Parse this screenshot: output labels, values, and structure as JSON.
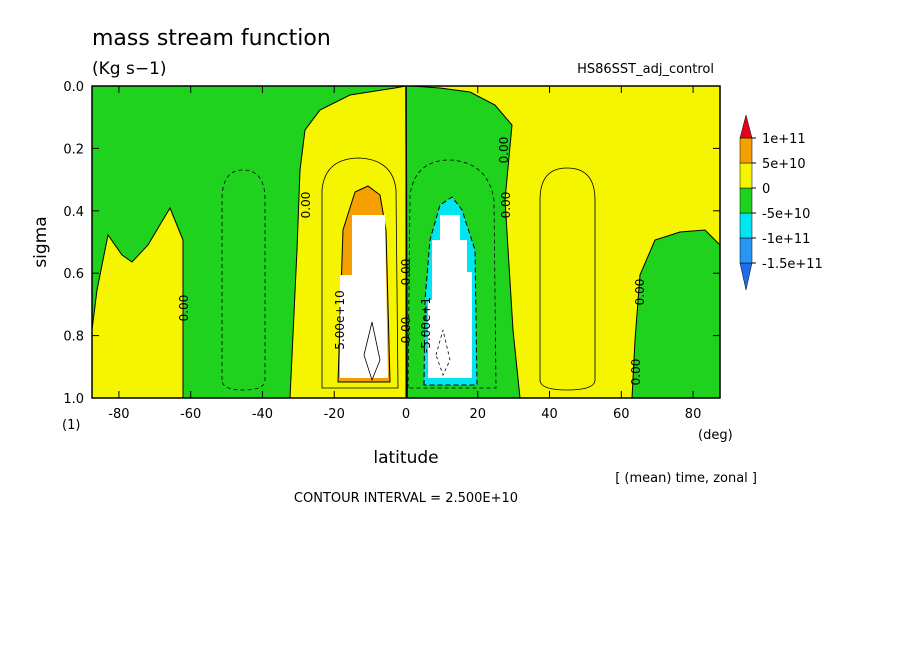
{
  "chart_data": {
    "type": "contour",
    "title": "mass stream function",
    "subtitle": "(Kg s−1)",
    "experiment": "HS86SST_adj_control",
    "xlabel": "latitude",
    "ylabel": "sigma",
    "y_unit": "(1)",
    "x_unit": "(deg)",
    "averaging": "[ (mean) time, zonal ]",
    "contour_interval": "CONTOUR INTERVAL = 2.500E+10",
    "xlim": [
      -87.5,
      87.5
    ],
    "ylim": [
      1.0,
      0.0
    ],
    "xticks": [
      -80,
      -60,
      -40,
      -20,
      0,
      20,
      40,
      60,
      80
    ],
    "yticks": [
      {
        "value": 0,
        "label": "0.0"
      },
      0.2,
      0.4,
      0.6,
      0.8,
      {
        "value": 1,
        "label": "1.0"
      }
    ],
    "colorbar": {
      "levels": [
        {
          "value": -150000000000,
          "label": "-1.5e+11"
        },
        {
          "value": -100000000000,
          "label": "-1e+11"
        },
        {
          "value": -50000000000,
          "label": "-5e+10"
        },
        0,
        {
          "value": 50000000000,
          "label": "5e+10"
        },
        {
          "value": 100000000000,
          "label": "1e+11"
        }
      ],
      "colors": [
        "#1e6eeb",
        "#2896f5",
        "#00e6f0",
        "#1ed21e",
        "#f5f500",
        "#f5a000",
        "#e6001e"
      ]
    },
    "contour_labels": [
      "5.00e+10",
      "-5.00e+1",
      "0.00",
      "0.00",
      "0.00",
      "0.00",
      "0.00",
      "0.00",
      "0.00",
      "0.00"
    ]
  }
}
